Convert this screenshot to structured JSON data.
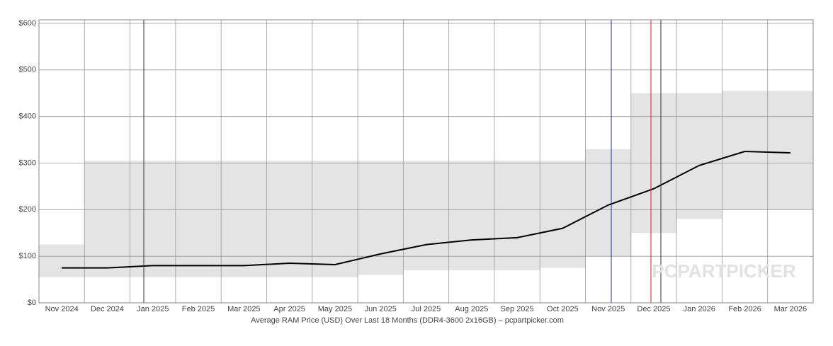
{
  "chart_data": {
    "type": "line",
    "xlabel": "Average RAM Price (USD) Over Last 18 Months (DDR4-3600 2x16GB) – pcpartpicker.com",
    "watermark": "PCPARTPICKER",
    "categories": [
      "Nov 2024",
      "Dec 2024",
      "Jan 2025",
      "Feb 2025",
      "Mar 2025",
      "Apr 2025",
      "May 2025",
      "Jun 2025",
      "Jul 2025",
      "Aug 2025",
      "Sep 2025",
      "Oct 2025",
      "Nov 2025",
      "Dec 2025",
      "Jan 2026",
      "Feb 2026",
      "Mar 2026"
    ],
    "series": [
      {
        "name": "Average price",
        "color": "#000000",
        "values": [
          75,
          75,
          80,
          80,
          80,
          85,
          82,
          105,
          125,
          135,
          140,
          160,
          210,
          245,
          295,
          325,
          322
        ]
      }
    ],
    "range": {
      "color": "#e4e4e4",
      "low": [
        55,
        55,
        55,
        55,
        55,
        55,
        55,
        60,
        70,
        70,
        70,
        75,
        100,
        150,
        180,
        200,
        200
      ],
      "high": [
        125,
        305,
        305,
        305,
        305,
        305,
        305,
        305,
        305,
        305,
        305,
        305,
        330,
        450,
        450,
        455,
        455
      ]
    },
    "ylim": [
      0,
      600
    ],
    "yticks": [
      {
        "value": 0,
        "label": "$0"
      },
      {
        "value": 100,
        "label": "$100"
      },
      {
        "value": 200,
        "label": "$200"
      },
      {
        "value": 300,
        "label": "$300"
      },
      {
        "value": 400,
        "label": "$400"
      },
      {
        "value": 500,
        "label": "$500"
      },
      {
        "value": 600,
        "label": "$600"
      }
    ],
    "grid": true
  }
}
